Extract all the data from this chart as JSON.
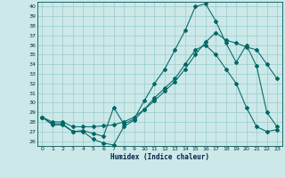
{
  "xlabel": "Humidex (Indice chaleur)",
  "bg_color": "#cce8e8",
  "grid_color": "#99cccc",
  "line_color": "#006666",
  "xlim": [
    -0.5,
    23.5
  ],
  "ylim": [
    25.5,
    40.5
  ],
  "yticks": [
    26,
    27,
    28,
    29,
    30,
    31,
    32,
    33,
    34,
    35,
    36,
    37,
    38,
    39,
    40
  ],
  "xticks": [
    0,
    1,
    2,
    3,
    4,
    5,
    6,
    7,
    8,
    9,
    10,
    11,
    12,
    13,
    14,
    15,
    16,
    17,
    18,
    19,
    20,
    21,
    22,
    23
  ],
  "series1_x": [
    0,
    1,
    2,
    3,
    4,
    5,
    6,
    7,
    8,
    9,
    10,
    11,
    12,
    13,
    14,
    15,
    16,
    17,
    18,
    19,
    20,
    21,
    22,
    23
  ],
  "series1_y": [
    28.5,
    27.8,
    27.8,
    27.0,
    27.0,
    26.2,
    25.8,
    25.6,
    27.5,
    28.2,
    29.3,
    30.5,
    31.5,
    32.5,
    34.0,
    35.5,
    36.0,
    35.0,
    33.5,
    32.0,
    29.5,
    27.5,
    27.0,
    27.2
  ],
  "series2_x": [
    0,
    1,
    2,
    3,
    4,
    5,
    6,
    7,
    8,
    9,
    10,
    11,
    12,
    13,
    14,
    15,
    16,
    17,
    18,
    19,
    20,
    21,
    22,
    23
  ],
  "series2_y": [
    28.5,
    27.7,
    27.7,
    27.0,
    27.1,
    26.8,
    26.5,
    29.5,
    27.8,
    28.3,
    30.2,
    32.0,
    33.5,
    35.5,
    37.5,
    40.0,
    40.3,
    38.5,
    36.2,
    34.2,
    36.0,
    33.8,
    29.0,
    27.5
  ],
  "series3_x": [
    0,
    1,
    2,
    3,
    4,
    5,
    6,
    7,
    8,
    9,
    10,
    11,
    12,
    13,
    14,
    15,
    16,
    17,
    18,
    19,
    20,
    21,
    22,
    23
  ],
  "series3_y": [
    28.5,
    28.0,
    28.0,
    27.5,
    27.5,
    27.5,
    27.6,
    27.7,
    28.0,
    28.5,
    29.3,
    30.2,
    31.2,
    32.2,
    33.5,
    35.0,
    36.3,
    37.3,
    36.5,
    36.2,
    35.8,
    35.5,
    34.0,
    32.5
  ]
}
